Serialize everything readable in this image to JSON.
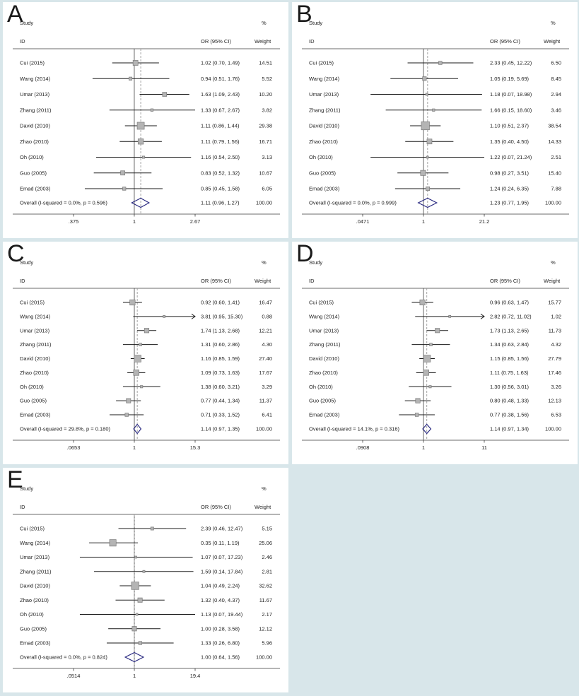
{
  "figure": {
    "background_color": "#d8e6ea",
    "panel_color": "#ffffff",
    "columns": {
      "study": "Study",
      "id": "ID",
      "or": "OR (95% CI)",
      "pct": "%",
      "weight": "Weight"
    },
    "colors": {
      "marker_fill": "#b4b4b4",
      "marker_stroke": "#7a7a7a",
      "ci_line": "#1a1a1a",
      "diamond": "#23237d",
      "axis": "#3a3a3a",
      "null_line": "#555555",
      "dashed_line": "#999999",
      "text": "#222222"
    }
  },
  "chart_data": [
    {
      "type": "forest",
      "label": "A",
      "x_min": 0.375,
      "x_max": 2.67,
      "ticks": [
        {
          "label": ".375",
          "value": 0.375
        },
        {
          "label": "1",
          "value": 1
        },
        {
          "label": "2.67",
          "value": 2.67
        }
      ],
      "studies": [
        {
          "id": "Cui (2015)",
          "or": 1.02,
          "lo": 0.7,
          "hi": 1.49,
          "or_text": "1.02 (0.70, 1.49)",
          "weight": "14.51",
          "arrow": false
        },
        {
          "id": "Wang (2014)",
          "or": 0.94,
          "lo": 0.51,
          "hi": 1.76,
          "or_text": "0.94 (0.51, 1.76)",
          "weight": "5.52",
          "arrow": false
        },
        {
          "id": "Umar (2013)",
          "or": 1.63,
          "lo": 1.09,
          "hi": 2.43,
          "or_text": "1.63 (1.09, 2.43)",
          "weight": "10.20",
          "arrow": false
        },
        {
          "id": "Zhang (2011)",
          "or": 1.33,
          "lo": 0.67,
          "hi": 2.67,
          "or_text": "1.33 (0.67, 2.67)",
          "weight": "3.82",
          "arrow": false
        },
        {
          "id": "David (2010)",
          "or": 1.11,
          "lo": 0.86,
          "hi": 1.44,
          "or_text": "1.11 (0.86, 1.44)",
          "weight": "29.38",
          "arrow": false
        },
        {
          "id": "Zhao (2010)",
          "or": 1.11,
          "lo": 0.79,
          "hi": 1.56,
          "or_text": "1.11 (0.79, 1.56)",
          "weight": "16.71",
          "arrow": false
        },
        {
          "id": "Oh (2010)",
          "or": 1.16,
          "lo": 0.54,
          "hi": 2.5,
          "or_text": "1.16 (0.54, 2.50)",
          "weight": "3.13",
          "arrow": false
        },
        {
          "id": "Guo (2005)",
          "or": 0.83,
          "lo": 0.52,
          "hi": 1.32,
          "or_text": "0.83 (0.52, 1.32)",
          "weight": "10.67",
          "arrow": false
        },
        {
          "id": "Emad (2003)",
          "or": 0.85,
          "lo": 0.45,
          "hi": 1.58,
          "or_text": "0.85 (0.45, 1.58)",
          "weight": "6.05",
          "arrow": false
        }
      ],
      "overall": {
        "label": "Overall  (I-squared = 0.0%, p = 0.596)",
        "or": 1.11,
        "lo": 0.96,
        "hi": 1.27,
        "or_text": "1.11 (0.96, 1.27)",
        "weight": "100.00"
      }
    },
    {
      "type": "forest",
      "label": "B",
      "x_min": 0.0471,
      "x_max": 21.2,
      "ticks": [
        {
          "label": ".0471",
          "value": 0.0471
        },
        {
          "label": "1",
          "value": 1
        },
        {
          "label": "21.2",
          "value": 21.2
        }
      ],
      "studies": [
        {
          "id": "Cui (2015)",
          "or": 2.33,
          "lo": 0.45,
          "hi": 12.22,
          "or_text": "2.33 (0.45, 12.22)",
          "weight": "6.50",
          "arrow": false
        },
        {
          "id": "Wang (2014)",
          "or": 1.05,
          "lo": 0.19,
          "hi": 5.69,
          "or_text": "1.05 (0.19, 5.69)",
          "weight": "8.45",
          "arrow": false
        },
        {
          "id": "Umar (2013)",
          "or": 1.18,
          "lo": 0.07,
          "hi": 18.98,
          "or_text": "1.18 (0.07, 18.98)",
          "weight": "2.94",
          "arrow": false
        },
        {
          "id": "Zhang (2011)",
          "or": 1.66,
          "lo": 0.15,
          "hi": 18.6,
          "or_text": "1.66 (0.15, 18.60)",
          "weight": "3.46",
          "arrow": false
        },
        {
          "id": "David (2010)",
          "or": 1.1,
          "lo": 0.51,
          "hi": 2.37,
          "or_text": "1.10 (0.51, 2.37)",
          "weight": "38.54",
          "arrow": false
        },
        {
          "id": "Zhao (2010)",
          "or": 1.35,
          "lo": 0.4,
          "hi": 4.5,
          "or_text": "1.35 (0.40, 4.50)",
          "weight": "14.33",
          "arrow": false
        },
        {
          "id": "Oh (2010)",
          "or": 1.22,
          "lo": 0.07,
          "hi": 21.24,
          "or_text": "1.22 (0.07, 21.24)",
          "weight": "2.51",
          "arrow": false
        },
        {
          "id": "Guo (2005)",
          "or": 0.98,
          "lo": 0.27,
          "hi": 3.51,
          "or_text": "0.98 (0.27, 3.51)",
          "weight": "15.40",
          "arrow": false
        },
        {
          "id": "Emad (2003)",
          "or": 1.24,
          "lo": 0.24,
          "hi": 6.35,
          "or_text": "1.24 (0.24, 6.35)",
          "weight": "7.88",
          "arrow": false
        }
      ],
      "overall": {
        "label": "Overall  (I-squared = 0.0%, p = 0.999)",
        "or": 1.23,
        "lo": 0.77,
        "hi": 1.95,
        "or_text": "1.23 (0.77, 1.95)",
        "weight": "100.00"
      }
    },
    {
      "type": "forest",
      "label": "C",
      "x_min": 0.0653,
      "x_max": 15.3,
      "ticks": [
        {
          "label": ".0653",
          "value": 0.0653
        },
        {
          "label": "1",
          "value": 1
        },
        {
          "label": "15.3",
          "value": 15.3
        }
      ],
      "studies": [
        {
          "id": "Cui (2015)",
          "or": 0.92,
          "lo": 0.6,
          "hi": 1.41,
          "or_text": "0.92 (0.60, 1.41)",
          "weight": "16.47",
          "arrow": false
        },
        {
          "id": "Wang (2014)",
          "or": 3.81,
          "lo": 0.95,
          "hi": 15.3,
          "or_text": "3.81 (0.95, 15.30)",
          "weight": "0.88",
          "arrow": true
        },
        {
          "id": "Umar (2013)",
          "or": 1.74,
          "lo": 1.13,
          "hi": 2.68,
          "or_text": "1.74 (1.13, 2.68)",
          "weight": "12.21",
          "arrow": false
        },
        {
          "id": "Zhang (2011)",
          "or": 1.31,
          "lo": 0.6,
          "hi": 2.86,
          "or_text": "1.31 (0.60, 2.86)",
          "weight": "4.30",
          "arrow": false
        },
        {
          "id": "David (2010)",
          "or": 1.16,
          "lo": 0.85,
          "hi": 1.59,
          "or_text": "1.16 (0.85, 1.59)",
          "weight": "27.40",
          "arrow": false
        },
        {
          "id": "Zhao (2010)",
          "or": 1.09,
          "lo": 0.73,
          "hi": 1.63,
          "or_text": "1.09 (0.73, 1.63)",
          "weight": "17.67",
          "arrow": false
        },
        {
          "id": "Oh (2010)",
          "or": 1.38,
          "lo": 0.6,
          "hi": 3.21,
          "or_text": "1.38 (0.60, 3.21)",
          "weight": "3.29",
          "arrow": false
        },
        {
          "id": "Guo (2005)",
          "or": 0.77,
          "lo": 0.44,
          "hi": 1.34,
          "or_text": "0.77 (0.44, 1.34)",
          "weight": "11.37",
          "arrow": false
        },
        {
          "id": "Emad (2003)",
          "or": 0.71,
          "lo": 0.33,
          "hi": 1.52,
          "or_text": "0.71 (0.33, 1.52)",
          "weight": "6.41",
          "arrow": false
        }
      ],
      "overall": {
        "label": "Overall  (I-squared = 29.8%, p = 0.180)",
        "or": 1.14,
        "lo": 0.97,
        "hi": 1.35,
        "or_text": "1.14 (0.97, 1.35)",
        "weight": "100.00"
      }
    },
    {
      "type": "forest",
      "label": "D",
      "x_min": 0.0908,
      "x_max": 11,
      "ticks": [
        {
          "label": ".0908",
          "value": 0.0908
        },
        {
          "label": "1",
          "value": 1
        },
        {
          "label": "11",
          "value": 11
        }
      ],
      "studies": [
        {
          "id": "Cui (2015)",
          "or": 0.96,
          "lo": 0.63,
          "hi": 1.47,
          "or_text": "0.96 (0.63, 1.47)",
          "weight": "15.77",
          "arrow": false
        },
        {
          "id": "Wang (2014)",
          "or": 2.82,
          "lo": 0.72,
          "hi": 11.02,
          "or_text": "2.82 (0.72, 11.02)",
          "weight": "1.02",
          "arrow": true
        },
        {
          "id": "Umar (2013)",
          "or": 1.73,
          "lo": 1.13,
          "hi": 2.65,
          "or_text": "1.73 (1.13, 2.65)",
          "weight": "11.73",
          "arrow": false
        },
        {
          "id": "Zhang (2011)",
          "or": 1.34,
          "lo": 0.63,
          "hi": 2.84,
          "or_text": "1.34 (0.63, 2.84)",
          "weight": "4.32",
          "arrow": false
        },
        {
          "id": "David (2010)",
          "or": 1.15,
          "lo": 0.85,
          "hi": 1.56,
          "or_text": "1.15 (0.85, 1.56)",
          "weight": "27.79",
          "arrow": false
        },
        {
          "id": "Zhao (2010)",
          "or": 1.11,
          "lo": 0.75,
          "hi": 1.63,
          "or_text": "1.11 (0.75, 1.63)",
          "weight": "17.46",
          "arrow": false
        },
        {
          "id": "Oh (2010)",
          "or": 1.3,
          "lo": 0.56,
          "hi": 3.01,
          "or_text": "1.30 (0.56, 3.01)",
          "weight": "3.26",
          "arrow": false
        },
        {
          "id": "Guo (2005)",
          "or": 0.8,
          "lo": 0.48,
          "hi": 1.33,
          "or_text": "0.80 (0.48, 1.33)",
          "weight": "12.13",
          "arrow": false
        },
        {
          "id": "Emad (2003)",
          "or": 0.77,
          "lo": 0.38,
          "hi": 1.56,
          "or_text": "0.77 (0.38, 1.56)",
          "weight": "6.53",
          "arrow": false
        }
      ],
      "overall": {
        "label": "Overall  (I-squared = 14.1%, p = 0.316)",
        "or": 1.14,
        "lo": 0.97,
        "hi": 1.34,
        "or_text": "1.14 (0.97, 1.34)",
        "weight": "100.00"
      }
    },
    {
      "type": "forest",
      "label": "E",
      "x_min": 0.0514,
      "x_max": 19.4,
      "ticks": [
        {
          "label": ".0514",
          "value": 0.0514
        },
        {
          "label": "1",
          "value": 1
        },
        {
          "label": "19.4",
          "value": 19.4
        }
      ],
      "studies": [
        {
          "id": "Cui (2015)",
          "or": 2.39,
          "lo": 0.46,
          "hi": 12.47,
          "or_text": "2.39 (0.46, 12.47)",
          "weight": "5.15",
          "arrow": false
        },
        {
          "id": "Wang (2014)",
          "or": 0.35,
          "lo": 0.11,
          "hi": 1.19,
          "or_text": "0.35 (0.11, 1.19)",
          "weight": "25.06",
          "arrow": false
        },
        {
          "id": "Umar (2013)",
          "or": 1.07,
          "lo": 0.07,
          "hi": 17.23,
          "or_text": "1.07 (0.07, 17.23)",
          "weight": "2.46",
          "arrow": false
        },
        {
          "id": "Zhang (2011)",
          "or": 1.59,
          "lo": 0.14,
          "hi": 17.84,
          "or_text": "1.59 (0.14, 17.84)",
          "weight": "2.81",
          "arrow": false
        },
        {
          "id": "David (2010)",
          "or": 1.04,
          "lo": 0.49,
          "hi": 2.24,
          "or_text": "1.04 (0.49, 2.24)",
          "weight": "32.62",
          "arrow": false
        },
        {
          "id": "Zhao (2010)",
          "or": 1.32,
          "lo": 0.4,
          "hi": 4.37,
          "or_text": "1.32 (0.40, 4.37)",
          "weight": "11.67",
          "arrow": false
        },
        {
          "id": "Oh (2010)",
          "or": 1.13,
          "lo": 0.07,
          "hi": 19.44,
          "or_text": "1.13 (0.07, 19.44)",
          "weight": "2.17",
          "arrow": false
        },
        {
          "id": "Guo (2005)",
          "or": 1.0,
          "lo": 0.28,
          "hi": 3.58,
          "or_text": "1.00 (0.28, 3.58)",
          "weight": "12.12",
          "arrow": false
        },
        {
          "id": "Emad (2003)",
          "or": 1.33,
          "lo": 0.26,
          "hi": 6.8,
          "or_text": "1.33 (0.26, 6.80)",
          "weight": "5.96",
          "arrow": false
        }
      ],
      "overall": {
        "label": "Overall  (I-squared = 0.0%, p = 0.824)",
        "or": 1.0,
        "lo": 0.64,
        "hi": 1.56,
        "or_text": "1.00 (0.64, 1.56)",
        "weight": "100.00"
      }
    }
  ]
}
